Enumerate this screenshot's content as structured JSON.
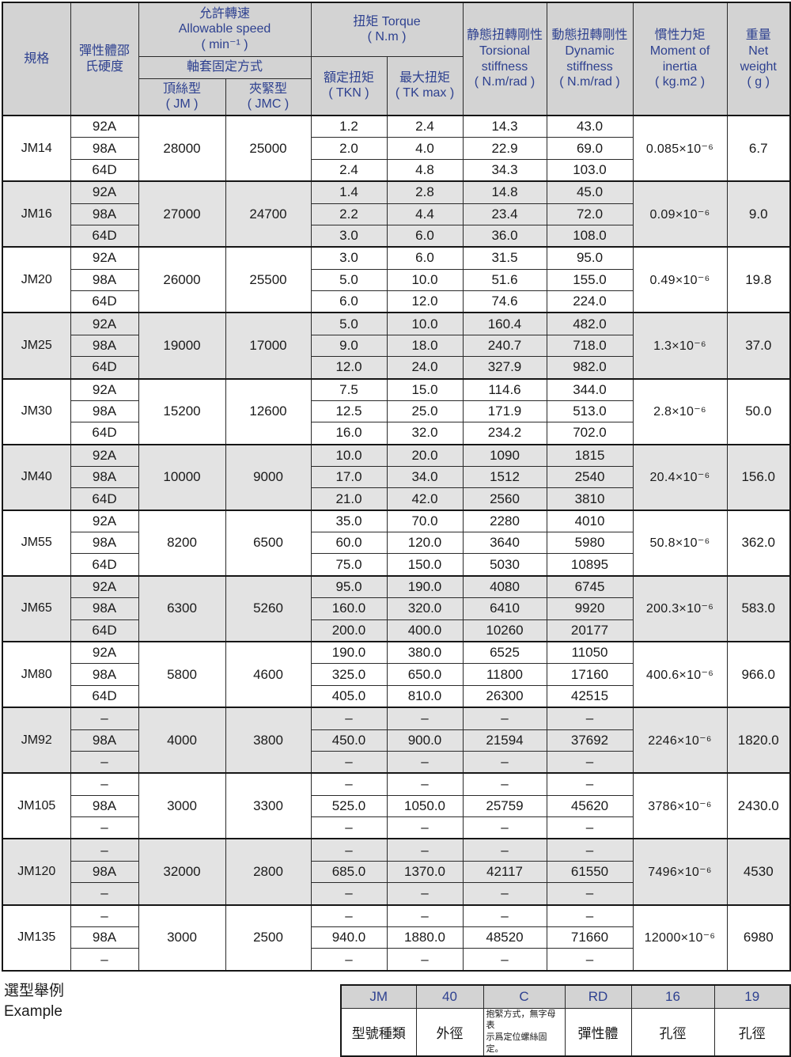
{
  "colors": {
    "header_bg": "#d3d3d3",
    "alt_row_bg": "#e3e3e3",
    "header_text_blue": "#2e4190",
    "data_text": "#1a1a1a",
    "border": "#161616"
  },
  "header": {
    "spec": "規格",
    "hardness": "彈性體邵\n氏硬度",
    "speed": {
      "zh": "允許轉速",
      "en": "Allowable speed",
      "unit": "( min⁻¹ )"
    },
    "fixing": "軸套固定方式",
    "set_screw": {
      "zh": "頂絲型",
      "code": "( JM )"
    },
    "clamp": {
      "zh": "夾緊型",
      "code": "( JMC )"
    },
    "torque": {
      "zh_en": "扭矩  Torque",
      "unit": "( N.m )"
    },
    "rated": {
      "zh": "額定扭矩",
      "code": "( TKN )"
    },
    "max": {
      "zh": "最大扭矩",
      "code": "( TK max )"
    },
    "static": {
      "zh": "静態扭轉剛性",
      "en1": "Torsional",
      "en2": "stiffness",
      "unit": "( N.m/rad )"
    },
    "dynamic": {
      "zh": "動態扭轉剛性",
      "en1": "Dynamic",
      "en2": "stiffness",
      "unit": "( N.m/rad )"
    },
    "inertia": {
      "zh": "慣性力矩",
      "en1": "Moment of",
      "en2": "inertia",
      "unit": "( kg.m2 )"
    },
    "weight": {
      "zh": "重量",
      "en1": "Net",
      "en2": "weight",
      "unit": "( g )"
    }
  },
  "groups": [
    {
      "model": "JM14",
      "jm": "28000",
      "jmc": "25000",
      "inertia": "0.085×10⁻⁶",
      "weight": "6.7",
      "rows": [
        {
          "hardness": "92A",
          "tkn": "1.2",
          "tkmax": "2.4",
          "static": "14.3",
          "dynamic": "43.0"
        },
        {
          "hardness": "98A",
          "tkn": "2.0",
          "tkmax": "4.0",
          "static": "22.9",
          "dynamic": "69.0"
        },
        {
          "hardness": "64D",
          "tkn": "2.4",
          "tkmax": "4.8",
          "static": "34.3",
          "dynamic": "103.0"
        }
      ]
    },
    {
      "model": "JM16",
      "jm": "27000",
      "jmc": "24700",
      "inertia": "0.09×10⁻⁶",
      "weight": "9.0",
      "rows": [
        {
          "hardness": "92A",
          "tkn": "1.4",
          "tkmax": "2.8",
          "static": "14.8",
          "dynamic": "45.0"
        },
        {
          "hardness": "98A",
          "tkn": "2.2",
          "tkmax": "4.4",
          "static": "23.4",
          "dynamic": "72.0"
        },
        {
          "hardness": "64D",
          "tkn": "3.0",
          "tkmax": "6.0",
          "static": "36.0",
          "dynamic": "108.0"
        }
      ]
    },
    {
      "model": "JM20",
      "jm": "26000",
      "jmc": "25500",
      "inertia": "0.49×10⁻⁶",
      "weight": "19.8",
      "rows": [
        {
          "hardness": "92A",
          "tkn": "3.0",
          "tkmax": "6.0",
          "static": "31.5",
          "dynamic": "95.0"
        },
        {
          "hardness": "98A",
          "tkn": "5.0",
          "tkmax": "10.0",
          "static": "51.6",
          "dynamic": "155.0"
        },
        {
          "hardness": "64D",
          "tkn": "6.0",
          "tkmax": "12.0",
          "static": "74.6",
          "dynamic": "224.0"
        }
      ]
    },
    {
      "model": "JM25",
      "jm": "19000",
      "jmc": "17000",
      "inertia": "1.3×10⁻⁶",
      "weight": "37.0",
      "rows": [
        {
          "hardness": "92A",
          "tkn": "5.0",
          "tkmax": "10.0",
          "static": "160.4",
          "dynamic": "482.0"
        },
        {
          "hardness": "98A",
          "tkn": "9.0",
          "tkmax": "18.0",
          "static": "240.7",
          "dynamic": "718.0"
        },
        {
          "hardness": "64D",
          "tkn": "12.0",
          "tkmax": "24.0",
          "static": "327.9",
          "dynamic": "982.0"
        }
      ]
    },
    {
      "model": "JM30",
      "jm": "15200",
      "jmc": "12600",
      "inertia": "2.8×10⁻⁶",
      "weight": "50.0",
      "rows": [
        {
          "hardness": "92A",
          "tkn": "7.5",
          "tkmax": "15.0",
          "static": "114.6",
          "dynamic": "344.0"
        },
        {
          "hardness": "98A",
          "tkn": "12.5",
          "tkmax": "25.0",
          "static": "171.9",
          "dynamic": "513.0"
        },
        {
          "hardness": "64D",
          "tkn": "16.0",
          "tkmax": "32.0",
          "static": "234.2",
          "dynamic": "702.0"
        }
      ]
    },
    {
      "model": "JM40",
      "jm": "10000",
      "jmc": "9000",
      "inertia": "20.4×10⁻⁶",
      "weight": "156.0",
      "rows": [
        {
          "hardness": "92A",
          "tkn": "10.0",
          "tkmax": "20.0",
          "static": "1090",
          "dynamic": "1815"
        },
        {
          "hardness": "98A",
          "tkn": "17.0",
          "tkmax": "34.0",
          "static": "1512",
          "dynamic": "2540"
        },
        {
          "hardness": "64D",
          "tkn": "21.0",
          "tkmax": "42.0",
          "static": "2560",
          "dynamic": "3810"
        }
      ]
    },
    {
      "model": "JM55",
      "jm": "8200",
      "jmc": "6500",
      "inertia": "50.8×10⁻⁶",
      "weight": "362.0",
      "rows": [
        {
          "hardness": "92A",
          "tkn": "35.0",
          "tkmax": "70.0",
          "static": "2280",
          "dynamic": "4010"
        },
        {
          "hardness": "98A",
          "tkn": "60.0",
          "tkmax": "120.0",
          "static": "3640",
          "dynamic": "5980"
        },
        {
          "hardness": "64D",
          "tkn": "75.0",
          "tkmax": "150.0",
          "static": "5030",
          "dynamic": "10895"
        }
      ]
    },
    {
      "model": "JM65",
      "jm": "6300",
      "jmc": "5260",
      "inertia": "200.3×10⁻⁶",
      "weight": "583.0",
      "rows": [
        {
          "hardness": "92A",
          "tkn": "95.0",
          "tkmax": "190.0",
          "static": "4080",
          "dynamic": "6745"
        },
        {
          "hardness": "98A",
          "tkn": "160.0",
          "tkmax": "320.0",
          "static": "6410",
          "dynamic": "9920"
        },
        {
          "hardness": "64D",
          "tkn": "200.0",
          "tkmax": "400.0",
          "static": "10260",
          "dynamic": "20177"
        }
      ]
    },
    {
      "model": "JM80",
      "jm": "5800",
      "jmc": "4600",
      "inertia": "400.6×10⁻⁶",
      "weight": "966.0",
      "rows": [
        {
          "hardness": "92A",
          "tkn": "190.0",
          "tkmax": "380.0",
          "static": "6525",
          "dynamic": "11050"
        },
        {
          "hardness": "98A",
          "tkn": "325.0",
          "tkmax": "650.0",
          "static": "11800",
          "dynamic": "17160"
        },
        {
          "hardness": "64D",
          "tkn": "405.0",
          "tkmax": "810.0",
          "static": "26300",
          "dynamic": "42515"
        }
      ]
    },
    {
      "model": "JM92",
      "jm": "4000",
      "jmc": "3800",
      "inertia": "2246×10⁻⁶",
      "weight": "1820.0",
      "rows": [
        {
          "hardness": "–",
          "tkn": "–",
          "tkmax": "–",
          "static": "–",
          "dynamic": "–"
        },
        {
          "hardness": "98A",
          "tkn": "450.0",
          "tkmax": "900.0",
          "static": "21594",
          "dynamic": "37692"
        },
        {
          "hardness": "–",
          "tkn": "–",
          "tkmax": "–",
          "static": "–",
          "dynamic": "–"
        }
      ]
    },
    {
      "model": "JM105",
      "jm": "3000",
      "jmc": "3300",
      "inertia": "3786×10⁻⁶",
      "weight": "2430.0",
      "rows": [
        {
          "hardness": "–",
          "tkn": "–",
          "tkmax": "–",
          "static": "–",
          "dynamic": "–"
        },
        {
          "hardness": "98A",
          "tkn": "525.0",
          "tkmax": "1050.0",
          "static": "25759",
          "dynamic": "45620"
        },
        {
          "hardness": "–",
          "tkn": "–",
          "tkmax": "–",
          "static": "–",
          "dynamic": "–"
        }
      ]
    },
    {
      "model": "JM120",
      "jm": "32000",
      "jmc": "2800",
      "inertia": "7496×10⁻⁶",
      "weight": "4530",
      "rows": [
        {
          "hardness": "–",
          "tkn": "–",
          "tkmax": "–",
          "static": "–",
          "dynamic": "–"
        },
        {
          "hardness": "98A",
          "tkn": "685.0",
          "tkmax": "1370.0",
          "static": "42117",
          "dynamic": "61550"
        },
        {
          "hardness": "–",
          "tkn": "–",
          "tkmax": "–",
          "static": "–",
          "dynamic": "–"
        }
      ]
    },
    {
      "model": "JM135",
      "jm": "3000",
      "jmc": "2500",
      "inertia": "12000×10⁻⁶",
      "weight": "6980",
      "rows": [
        {
          "hardness": "–",
          "tkn": "–",
          "tkmax": "–",
          "static": "–",
          "dynamic": "–"
        },
        {
          "hardness": "98A",
          "tkn": "940.0",
          "tkmax": "1880.0",
          "static": "48520",
          "dynamic": "71660"
        },
        {
          "hardness": "–",
          "tkn": "–",
          "tkmax": "–",
          "static": "–",
          "dynamic": "–"
        }
      ]
    }
  ],
  "example": {
    "title_zh": "選型舉例",
    "title_en": "Example",
    "codes": [
      "JM",
      "40",
      "C",
      "RD",
      "16",
      "19"
    ],
    "labels": [
      "型號種類",
      "外徑",
      "抱緊方式，無字母表\n示爲定位螺絲固定。",
      "彈性體",
      "孔徑",
      "孔徑"
    ]
  }
}
